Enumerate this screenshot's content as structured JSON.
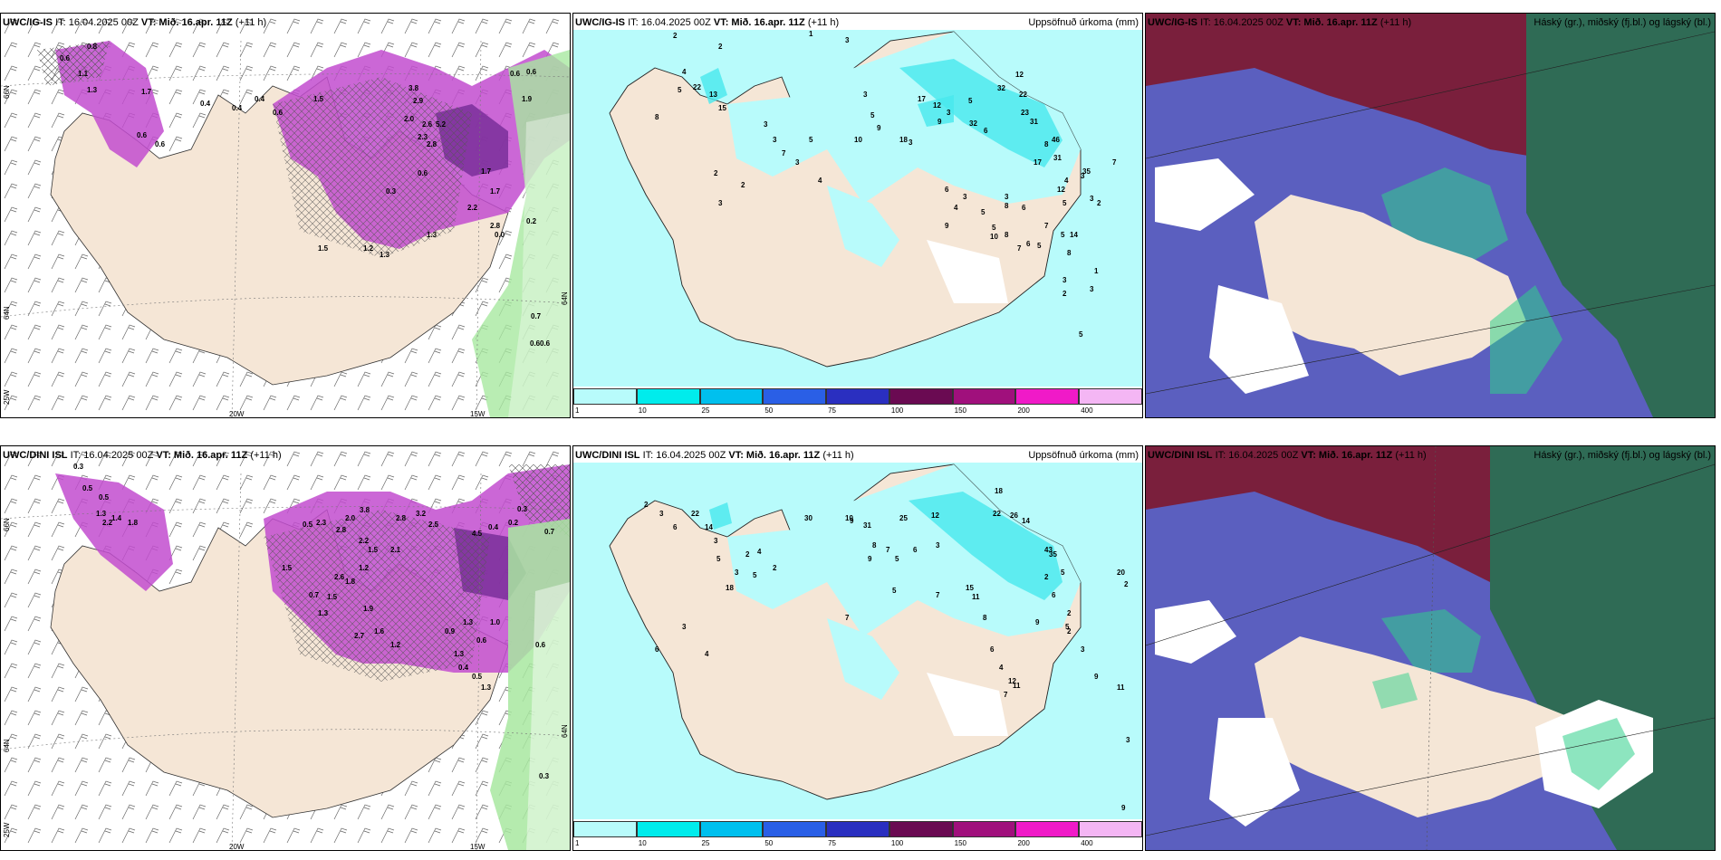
{
  "panels": [
    {
      "id": "p1",
      "model": "UWC/IG-IS",
      "it": "IT: 16.04.2025 00Z",
      "vt_label": "VT:",
      "vt": "Mið. 16.apr. 11Z",
      "lead": "(+11 h)",
      "right_title": "",
      "axis": {
        "lat_top": "66N",
        "lat_mid": "64N",
        "lat_bot": "25W",
        "lon_left": "20W",
        "lon_right": "15W",
        "lat_right": "64N"
      },
      "values": [
        "0.8",
        "0.6",
        "1.1",
        "1.3",
        "1.7",
        "0.6",
        "0.6",
        "0.4",
        "1.5",
        "3.8",
        "2.9",
        "2.0",
        "2.6",
        "2.3",
        "2.8",
        "5.2",
        "1.7",
        "1.9",
        "0.6",
        "0.6",
        "1.3",
        "2.8",
        "1.7",
        "0.6",
        "0.3",
        "0.0",
        "0.2",
        "0.7",
        "0.6",
        "1.2",
        "1.3",
        "1.5",
        "0.4",
        "0.6",
        "0.4",
        "2.2",
        "0.6"
      ]
    },
    {
      "id": "p2",
      "model": "UWC/IG-IS",
      "it": "IT: 16.04.2025 00Z",
      "vt_label": "VT:",
      "vt": "Mið. 16.apr. 11Z",
      "lead": "(+11 h)",
      "right_title": "Uppsöfnuð úrkoma (mm)",
      "values": [
        "2",
        "2",
        "1",
        "3",
        "4",
        "5",
        "22",
        "13",
        "15",
        "8",
        "3",
        "3",
        "5",
        "7",
        "3",
        "4",
        "2",
        "2",
        "3",
        "3",
        "5",
        "9",
        "10",
        "18",
        "17",
        "12",
        "9",
        "3",
        "5",
        "32",
        "32",
        "22",
        "12",
        "23",
        "31",
        "17",
        "8",
        "6",
        "46",
        "31",
        "6",
        "4",
        "5",
        "5",
        "8",
        "7",
        "6",
        "7",
        "5",
        "4",
        "3",
        "3",
        "2",
        "12",
        "5",
        "3",
        "6",
        "3",
        "9",
        "10",
        "8",
        "3",
        "5",
        "8",
        "2",
        "3",
        "7",
        "5",
        "3",
        "35",
        "5",
        "14",
        "1"
      ]
    },
    {
      "id": "p3",
      "model": "UWC/IG-IS",
      "it": "IT: 16.04.2025 00Z",
      "vt_label": "VT:",
      "vt": "Mið. 16.apr. 11Z",
      "lead": "(+11 h)",
      "right_title": "Háský (gr.), miðský (fj.bl.) og lágský (bl.)"
    },
    {
      "id": "p4",
      "model": "UWC/DINI ISL",
      "it": "IT: 16.04.2025 00Z",
      "vt_label": "VT:",
      "vt": "Mið. 16.apr. 11Z",
      "lead": "(+11 h)",
      "right_title": "",
      "axis": {
        "lat_top": "66N",
        "lat_mid": "64N",
        "lat_bot": "25W",
        "lon_left": "20W",
        "lon_right": "15W",
        "lat_right": "64N"
      },
      "values": [
        "0.3",
        "0.5",
        "0.5",
        "1.3",
        "2.2",
        "1.4",
        "1.8",
        "3.8",
        "2.8",
        "3.2",
        "2.5",
        "0.5",
        "2.3",
        "2.8",
        "2.0",
        "2.2",
        "1.5",
        "4.5",
        "0.4",
        "0.2",
        "0.7",
        "0.3",
        "2.6",
        "1.8",
        "1.5",
        "1.2",
        "2.1",
        "1.5",
        "0.7",
        "1.3",
        "1.9",
        "2.7",
        "1.6",
        "1.2",
        "0.9",
        "1.3",
        "1.0",
        "0.6",
        "1.3",
        "0.4",
        "0.5",
        "1.3",
        "0.6",
        "0.3"
      ]
    },
    {
      "id": "p5",
      "model": "UWC/DINI ISL",
      "it": "IT: 16.04.2025 00Z",
      "vt_label": "VT:",
      "vt": "Mið. 16.apr. 11Z",
      "lead": "(+11 h)",
      "right_title": "Uppsöfnuð úrkoma (mm)",
      "values": [
        "2",
        "3",
        "22",
        "6",
        "14",
        "3",
        "5",
        "2",
        "4",
        "2",
        "5",
        "3",
        "18",
        "10",
        "9",
        "31",
        "30",
        "25",
        "12",
        "18",
        "22",
        "26",
        "14",
        "8",
        "9",
        "7",
        "5",
        "6",
        "3",
        "43",
        "35",
        "5",
        "2",
        "6",
        "2",
        "9",
        "5",
        "2",
        "3",
        "9",
        "12",
        "11",
        "7",
        "4",
        "6",
        "8",
        "11",
        "15",
        "7",
        "5",
        "7",
        "6",
        "3",
        "4",
        "20",
        "2",
        "11",
        "3",
        "9"
      ]
    },
    {
      "id": "p6",
      "model": "UWC/DINI ISL",
      "it": "IT: 16.04.2025 00Z",
      "vt_label": "VT:",
      "vt": "Mið. 16.apr. 11Z",
      "lead": "(+11 h)",
      "right_title": "Háský (gr.), miðský (fj.bl.) og lágský (bl.)"
    }
  ],
  "colorbar": {
    "ticks": [
      "1",
      "10",
      "25",
      "50",
      "75",
      "100",
      "150",
      "200",
      "400"
    ],
    "colors": [
      "#b8fbfb",
      "#00ecec",
      "#00c0ee",
      "#2a5fe6",
      "#2a2fc0",
      "#6a0a52",
      "#a0107c",
      "#f01ac8",
      "#f4b6f4"
    ]
  },
  "colors": {
    "land": "#f5e6d6",
    "sea_precip_light": "#b8fbfb",
    "precip_mid": "#47e8ee",
    "purple_precip": "#c24ccf",
    "purple_dark": "#7a2f9a",
    "green_precip": "#a8e8a0",
    "cloud_high": "#7a1f3c",
    "cloud_mid": "#5b5fbf",
    "cloud_low": "#2f6b55",
    "cloud_green": "#2fcf8a"
  }
}
